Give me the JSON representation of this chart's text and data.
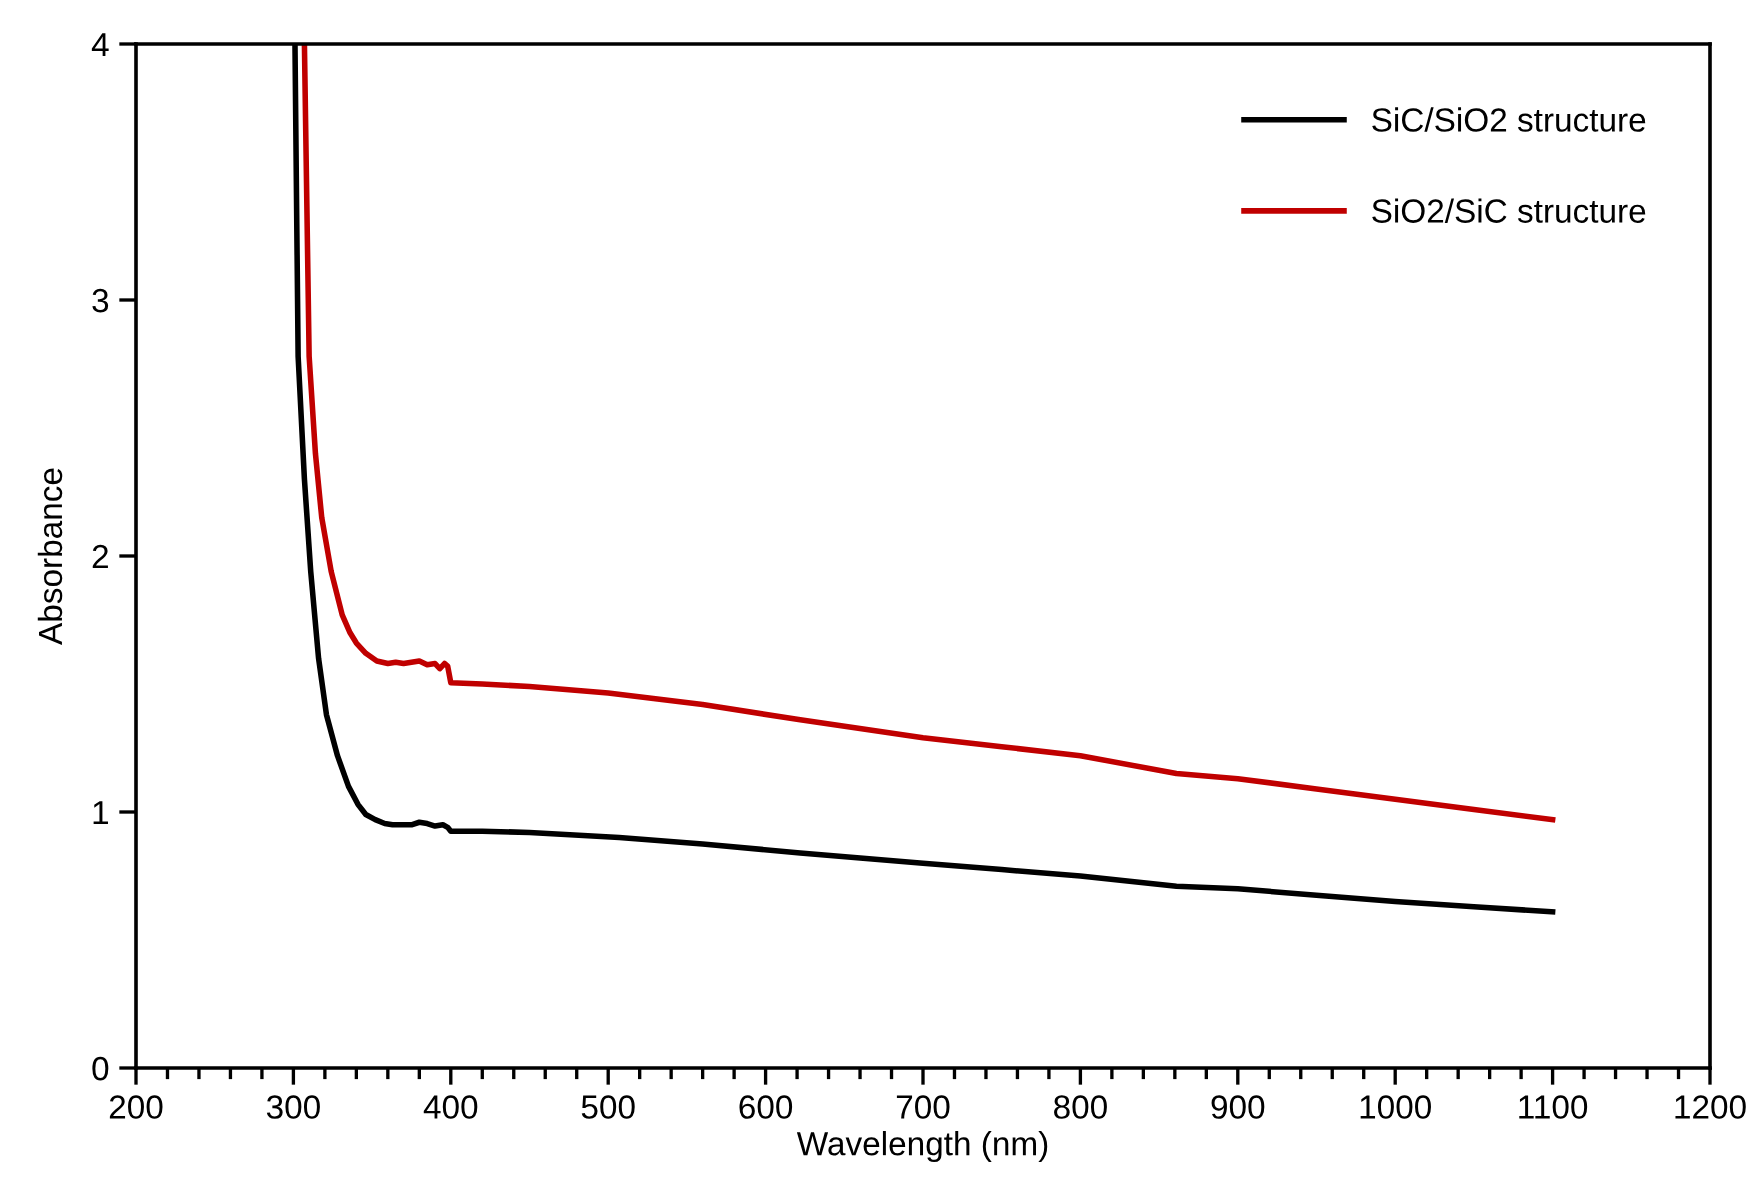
{
  "chart_data": {
    "type": "line",
    "xlabel": "Wavelength (nm)",
    "ylabel": "Absorbance",
    "xlim": [
      200,
      1200
    ],
    "ylim": [
      0,
      4
    ],
    "xticks": [
      200,
      300,
      400,
      500,
      600,
      700,
      800,
      900,
      1000,
      1100,
      1200
    ],
    "yticks": [
      0,
      1,
      2,
      3,
      4
    ],
    "grid": false,
    "legend": "top right",
    "marker": "none",
    "line_style": "solid",
    "series": [
      {
        "name": "SiC/SiO2 structure",
        "color": "#000000",
        "x": [
          301,
          303,
          307,
          311,
          316,
          321,
          328,
          335,
          341,
          346,
          352,
          358,
          363,
          370,
          375,
          380,
          385,
          390,
          395,
          398,
          400,
          420,
          450,
          507,
          560,
          622,
          700,
          750,
          800,
          861,
          900,
          950,
          1000,
          1050,
          1100
        ],
        "values": [
          4,
          2.78,
          2.3,
          1.94,
          1.6,
          1.38,
          1.22,
          1.1,
          1.03,
          0.99,
          0.97,
          0.955,
          0.95,
          0.95,
          0.95,
          0.96,
          0.955,
          0.945,
          0.95,
          0.94,
          0.925,
          0.925,
          0.92,
          0.9,
          0.875,
          0.84,
          0.8,
          0.775,
          0.75,
          0.71,
          0.7,
          0.675,
          0.65,
          0.63,
          0.61
        ]
      },
      {
        "name": "SiO2/SiC structure",
        "color": "#c00000",
        "x": [
          307,
          310,
          314,
          318,
          324,
          331,
          336,
          340,
          346,
          353,
          360,
          365,
          370,
          375,
          380,
          385,
          390,
          393,
          396,
          398,
          400,
          420,
          450,
          500,
          560,
          622,
          700,
          750,
          800,
          861,
          900,
          950,
          1000,
          1050,
          1100
        ],
        "values": [
          4,
          2.78,
          2.4,
          2.15,
          1.94,
          1.77,
          1.7,
          1.66,
          1.62,
          1.59,
          1.58,
          1.585,
          1.58,
          1.585,
          1.59,
          1.575,
          1.58,
          1.56,
          1.58,
          1.57,
          1.505,
          1.5,
          1.49,
          1.465,
          1.42,
          1.36,
          1.29,
          1.255,
          1.22,
          1.15,
          1.13,
          1.09,
          1.05,
          1.01,
          0.97
        ]
      }
    ]
  }
}
